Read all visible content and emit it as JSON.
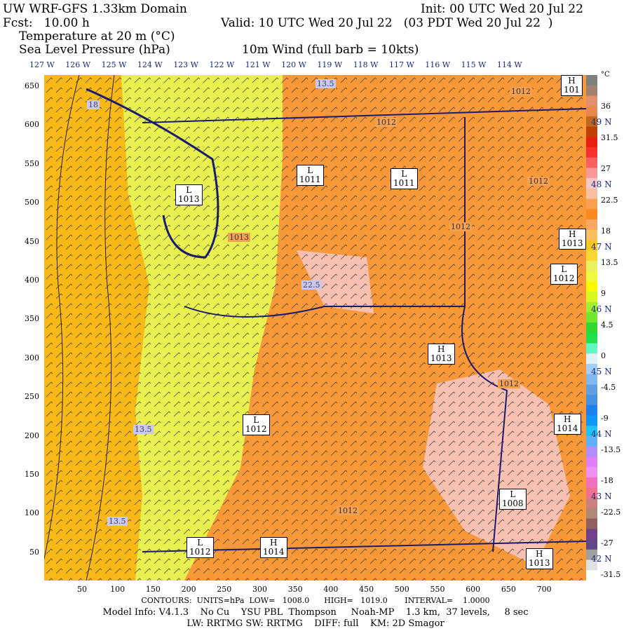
{
  "header": {
    "title": "UW WRF-GFS 1.33km Domain",
    "init": "Init: 00 UTC Wed 20 Jul 22",
    "fcst": "Fcst:   10.00 h",
    "valid": "Valid: 10 UTC Wed 20 Jul 22   (03 PDT Wed 20 Jul 22  )",
    "field1": "Temperature at 20 m (°C)",
    "field2": "Sea Level Pressure (hPa)",
    "wind": "10m Wind (full barb = 10kts)"
  },
  "longitudes": [
    "127 W",
    "126 W",
    "125 W",
    "124 W",
    "123 W",
    "122 W",
    "121 W",
    "120 W",
    "119 W",
    "118 W",
    "117 W",
    "116 W",
    "115 W",
    "114 W"
  ],
  "latitudes": [
    "49 N",
    "48 N",
    "47 N",
    "46 N",
    "45 N",
    "44 N",
    "43 N",
    "42 N"
  ],
  "y_ticks": [
    "650",
    "600",
    "550",
    "500",
    "450",
    "400",
    "350",
    "300",
    "250",
    "200",
    "150",
    "100",
    "50"
  ],
  "x_ticks": [
    "50",
    "100",
    "150",
    "200",
    "250",
    "300",
    "350",
    "400",
    "450",
    "500",
    "550",
    "600",
    "650",
    "700"
  ],
  "colorbar": {
    "unit": "°C",
    "labels": [
      "36",
      "31.5",
      "27",
      "22.5",
      "18",
      "13.5",
      "9",
      "4.5",
      "0",
      "-4.5",
      "-9",
      "-13.5",
      "-18",
      "-22.5",
      "-27",
      "-31.5"
    ],
    "colors": [
      "#808080",
      "#a08070",
      "#e09070",
      "#e88850",
      "#c06820",
      "#c04000",
      "#e82010",
      "#f83030",
      "#f86060",
      "#f89898",
      "#f8c8c8",
      "#f8c0a0",
      "#f8a050",
      "#f88820",
      "#f8a860",
      "#f8c060",
      "#f8c820",
      "#f8d830",
      "#e8f060",
      "#f0f840",
      "#f8f800",
      "#d8f820",
      "#a0f030",
      "#70e830",
      "#30d830",
      "#20e050",
      "#60f8c0",
      "#e0f0f8",
      "#a0d0f8",
      "#80b8f0",
      "#60a0e0",
      "#4890e0",
      "#2080f0",
      "#1098f8",
      "#20c0f8",
      "#60b0f8",
      "#b090f8",
      "#e080f8",
      "#f090f0",
      "#f070c0",
      "#f07090",
      "#c88080",
      "#b08878",
      "#906060",
      "#704088",
      "#604888",
      "#a0a0a0",
      "#e0e0e0",
      "#ffffff"
    ]
  },
  "pressure_centers": [
    {
      "type": "L",
      "value": "1013"
    },
    {
      "type": "L",
      "value": "1011"
    },
    {
      "type": "L",
      "value": "1011"
    },
    {
      "type": "H",
      "value": "1013"
    },
    {
      "type": "L",
      "value": "1012"
    },
    {
      "type": "H",
      "value": "1013"
    },
    {
      "type": "L",
      "value": "1012"
    },
    {
      "type": "H",
      "value": "1014"
    },
    {
      "type": "L",
      "value": "1008"
    },
    {
      "type": "L",
      "value": "1012"
    },
    {
      "type": "H",
      "value": "1014"
    },
    {
      "type": "H",
      "value": "1013"
    },
    {
      "type": "H",
      "value": "101"
    }
  ],
  "contour_labels": [
    "1012",
    "1012",
    "1013",
    "1012",
    "1012",
    "1012",
    "1012"
  ],
  "temp_labels": [
    "13.5",
    "22.5",
    "13.5",
    "13.5",
    "18"
  ],
  "footer": {
    "contours": "CONTOURS:  UNITS=hPa  LOW=   1008.0      HIGH=   1019.0       INTERVAL=    1.0000",
    "model": "Model Info: V4.1.3    No Cu    YSU PBL  Thompson     Noah-MP    1.3 km,  37 levels,     8 sec",
    "physics": "LW: RRTMG SW: RRTMG    DIFF: full    KM: 2D Smagor"
  }
}
